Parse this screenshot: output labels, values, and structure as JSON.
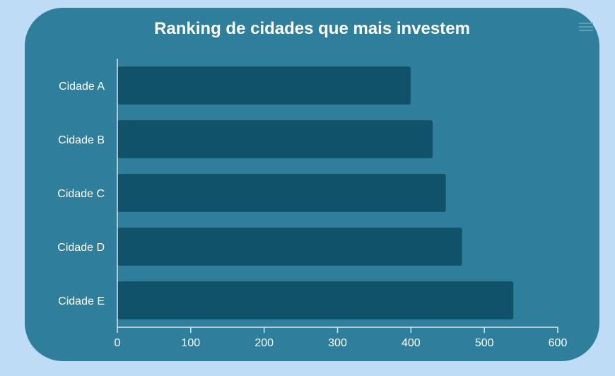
{
  "colors": {
    "page_background": "#bedcf6",
    "card_background": "#2f7f9c",
    "bar": "#10526a",
    "bar_border": "#2f7f9c",
    "axis": "#d6e6ee",
    "text": "#ffffff",
    "menu_icon": "#5c9fb7"
  },
  "menu": {
    "icon": "hamburger-menu-icon"
  },
  "chart_data": {
    "type": "bar",
    "orientation": "horizontal",
    "title": "Ranking de cidades que mais investem",
    "categories": [
      "Cidade A",
      "Cidade B",
      "Cidade C",
      "Cidade D",
      "Cidade E"
    ],
    "values": [
      400,
      430,
      448,
      470,
      540
    ],
    "xlim": [
      0,
      600
    ],
    "xticks": [
      0,
      100,
      200,
      300,
      400,
      500,
      600
    ],
    "grid": false,
    "legend": "none"
  }
}
